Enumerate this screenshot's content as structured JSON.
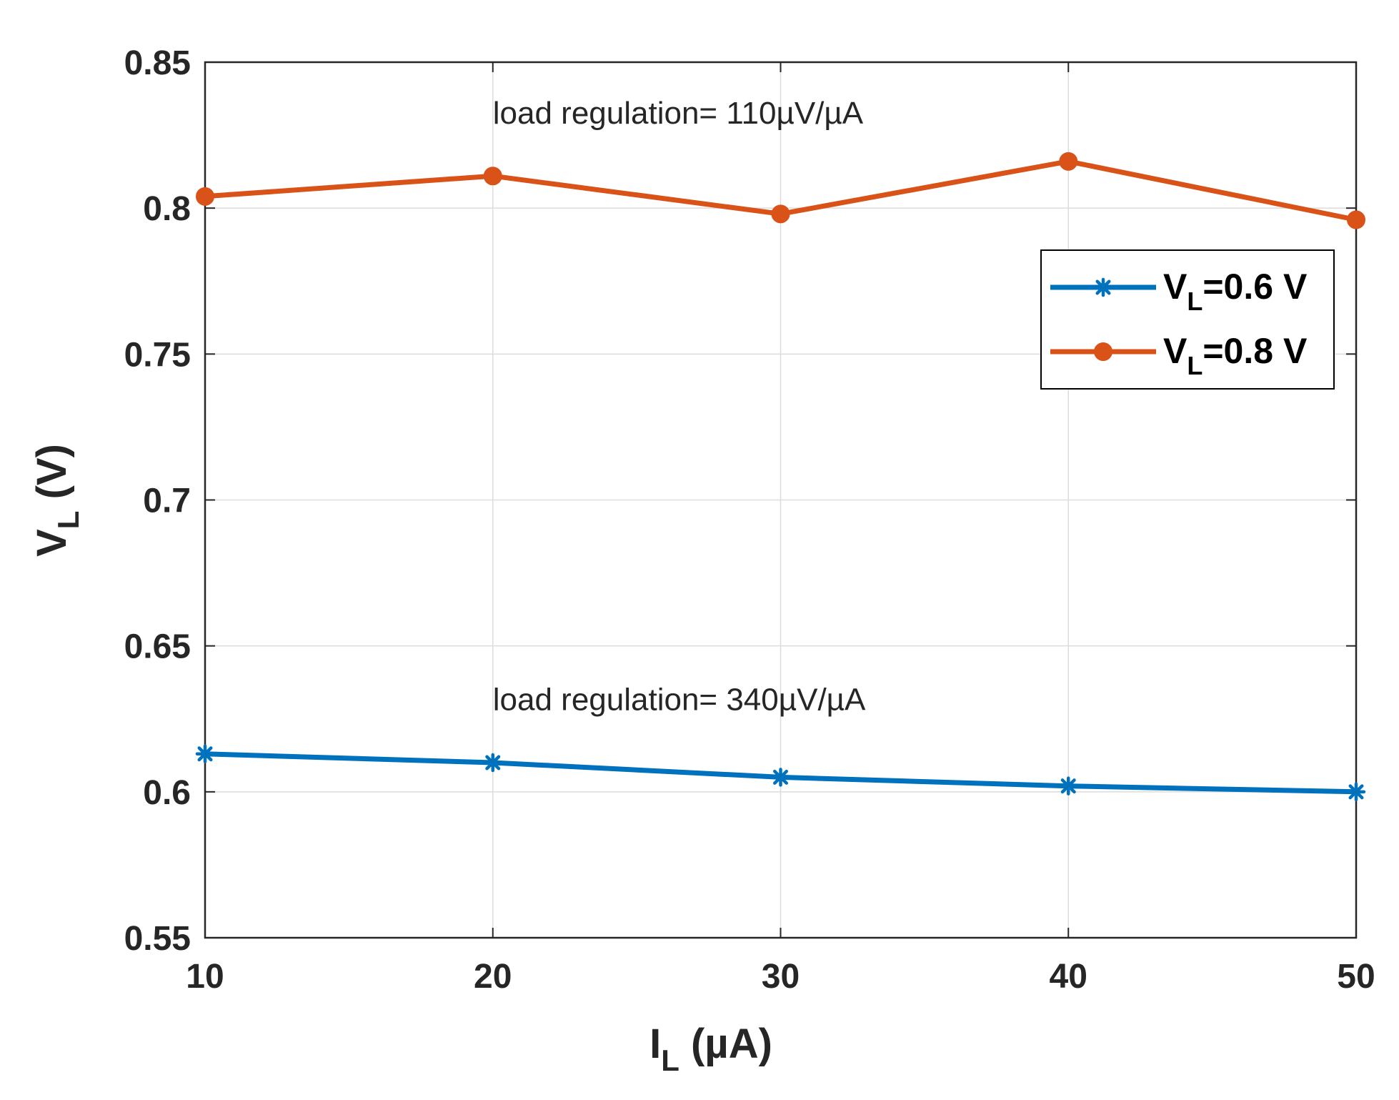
{
  "chart_data": {
    "type": "line",
    "title": "",
    "xlabel": {
      "main": "I",
      "sub": "L",
      "unit": " (µA)"
    },
    "ylabel": {
      "main": "V",
      "sub": "L",
      "unit": " (V)"
    },
    "xlim": [
      10,
      50
    ],
    "ylim": [
      0.55,
      0.85
    ],
    "x": [
      10,
      20,
      30,
      40,
      50
    ],
    "xticks": [
      10,
      20,
      30,
      40,
      50
    ],
    "xtick_labels": [
      "10",
      "20",
      "30",
      "40",
      "50"
    ],
    "yticks": [
      0.55,
      0.6,
      0.65,
      0.7,
      0.75,
      0.8,
      0.85
    ],
    "ytick_labels": [
      "0.55",
      "0.6",
      "0.65",
      "0.7",
      "0.75",
      "0.8",
      "0.85"
    ],
    "grid": true,
    "legend_position": "top-right",
    "series": [
      {
        "name": "V_L=0.6 V",
        "legend_main": "V",
        "legend_sub": "L",
        "legend_rest": "=0.6 V",
        "color": "#0072BD",
        "marker": "asterisk",
        "values": [
          0.613,
          0.61,
          0.605,
          0.602,
          0.6
        ]
      },
      {
        "name": "V_L=0.8 V",
        "legend_main": "V",
        "legend_sub": "L",
        "legend_rest": "=0.8 V",
        "color": "#D95319",
        "marker": "circle",
        "values": [
          0.804,
          0.811,
          0.798,
          0.816,
          0.796
        ]
      }
    ],
    "annotations": [
      {
        "text": "load regulation= 110µV/µA",
        "x": 20,
        "y": 0.829
      },
      {
        "text": "load regulation= 340µV/µA",
        "x": 20,
        "y": 0.628
      }
    ]
  }
}
